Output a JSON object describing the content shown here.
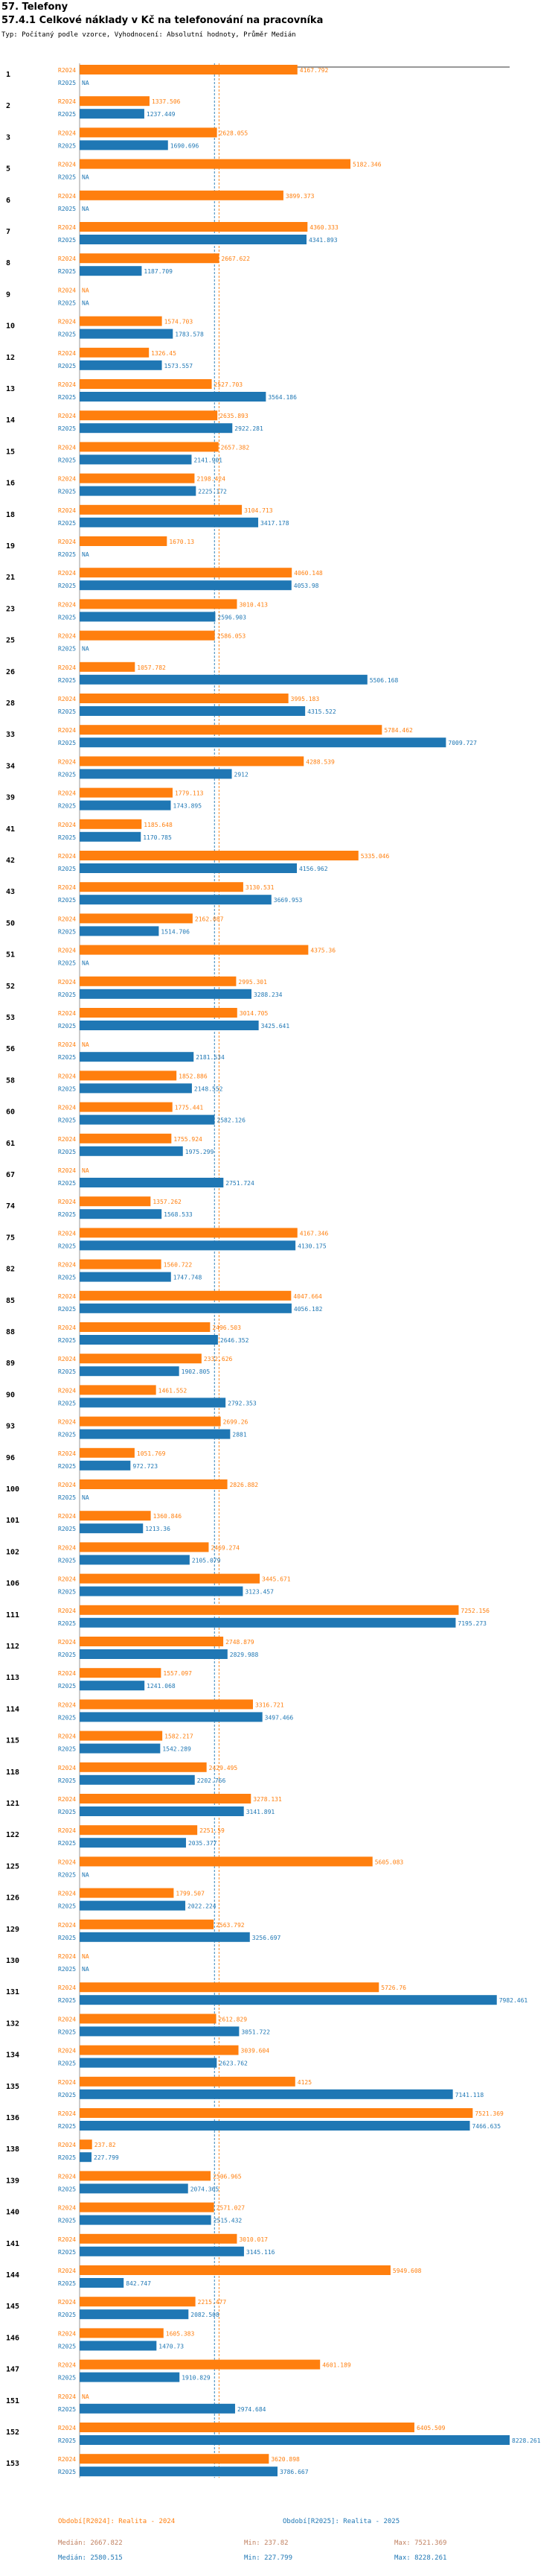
{
  "header": {
    "title": "57. Telefony",
    "subtitle": "57.4.1 Celkové náklady v Kč na telefonování na pracovníka",
    "type_line": "Typ: Počítaný podle vzorce, Vyhodnocení: Absolutní hodnoty, Průměr Medián"
  },
  "chart_data": {
    "type": "bar",
    "orientation": "horizontal",
    "title": "57.4.1 Celkové náklady v Kč na telefonování na pracovníka",
    "series_labels": [
      "R2024",
      "R2025"
    ],
    "na_label": "NA",
    "xlim": [
      0,
      8228.261
    ],
    "colors": {
      "R2024": "#ff7f0e",
      "R2025": "#1f77b4"
    },
    "reference_lines": [
      {
        "name": "median_2024",
        "value": 2667.822,
        "color": "#ff7f0e"
      },
      {
        "name": "median_2025",
        "value": 2580.515,
        "color": "#1f77b4"
      }
    ],
    "categories": [
      "1",
      "2",
      "3",
      "5",
      "6",
      "7",
      "8",
      "9",
      "10",
      "12",
      "13",
      "14",
      "15",
      "16",
      "18",
      "19",
      "21",
      "23",
      "25",
      "26",
      "28",
      "33",
      "34",
      "39",
      "41",
      "42",
      "43",
      "50",
      "51",
      "52",
      "53",
      "56",
      "58",
      "60",
      "61",
      "67",
      "74",
      "75",
      "82",
      "85",
      "88",
      "89",
      "90",
      "93",
      "96",
      "100",
      "101",
      "102",
      "106",
      "111",
      "112",
      "113",
      "114",
      "115",
      "118",
      "121",
      "122",
      "125",
      "126",
      "129",
      "130",
      "131",
      "132",
      "134",
      "135",
      "136",
      "138",
      "139",
      "140",
      "141",
      "144",
      "145",
      "146",
      "147",
      "151",
      "152",
      "153"
    ],
    "series": [
      {
        "name": "R2024",
        "values": [
          4167.792,
          1337.506,
          2628.055,
          5182.346,
          3899.373,
          4360.333,
          2667.622,
          null,
          1574.703,
          1326.45,
          2527.703,
          2635.893,
          2657.382,
          2198.424,
          3104.713,
          1670.13,
          4060.148,
          3010.413,
          2586.053,
          1057.782,
          3995.183,
          5784.462,
          4288.539,
          1779.113,
          1185.648,
          5335.046,
          3130.531,
          2162.087,
          4375.36,
          2995.301,
          3014.705,
          null,
          1852.886,
          1775.441,
          1755.924,
          null,
          1357.262,
          4167.346,
          1560.722,
          4047.664,
          2496.503,
          2332.626,
          1461.552,
          2699.26,
          1051.769,
          2826.882,
          1360.846,
          2469.274,
          3445.671,
          7252.156,
          2748.879,
          1557.097,
          3316.721,
          1582.217,
          2429.495,
          3278.131,
          2251.59,
          5605.083,
          1799.507,
          2563.792,
          null,
          5726.76,
          2612.829,
          3039.604,
          4125,
          7521.369,
          237.82,
          2506.965,
          2571.027,
          3010.017,
          5949.608,
          2215.477,
          1605.383,
          4601.189,
          null,
          6405.509,
          3620.898
        ]
      },
      {
        "name": "R2025",
        "values": [
          null,
          1237.449,
          1690.696,
          null,
          null,
          4341.893,
          1187.709,
          null,
          1783.578,
          1573.557,
          3564.186,
          2922.281,
          2141.901,
          2225.172,
          3417.178,
          null,
          4053.98,
          2596.903,
          null,
          5506.168,
          4315.522,
          7009.727,
          2912,
          1743.895,
          1170.785,
          4156.962,
          3669.953,
          1514.706,
          null,
          3288.234,
          3425.641,
          2181.534,
          2148.552,
          2582.126,
          1975.299,
          2751.724,
          1568.533,
          4130.175,
          1747.748,
          4056.182,
          2646.352,
          1902.805,
          2792.353,
          2881,
          972.723,
          null,
          1213.36,
          2105.079,
          3123.457,
          7195.273,
          2829.988,
          1241.068,
          3497.466,
          1542.289,
          2202.766,
          3141.891,
          2035.377,
          null,
          2022.224,
          3256.697,
          null,
          7982.461,
          3051.722,
          2623.762,
          7141.118,
          7466.635,
          227.799,
          2074.365,
          2515.432,
          3145.116,
          842.747,
          2082.508,
          1470.73,
          1910.829,
          2974.684,
          8228.261,
          3786.667
        ]
      }
    ]
  },
  "footer": {
    "legend_2024": "Období[R2024]: Realita - 2024",
    "legend_2025": "Období[R2025]: Realita - 2025",
    "median_2024": "Medián: 2667.822",
    "min_2024": "Min: 237.82",
    "max_2024": "Max: 7521.369",
    "median_2025": "Medián: 2580.515",
    "min_2025": "Min: 227.799",
    "max_2025": "Max: 8228.261"
  }
}
